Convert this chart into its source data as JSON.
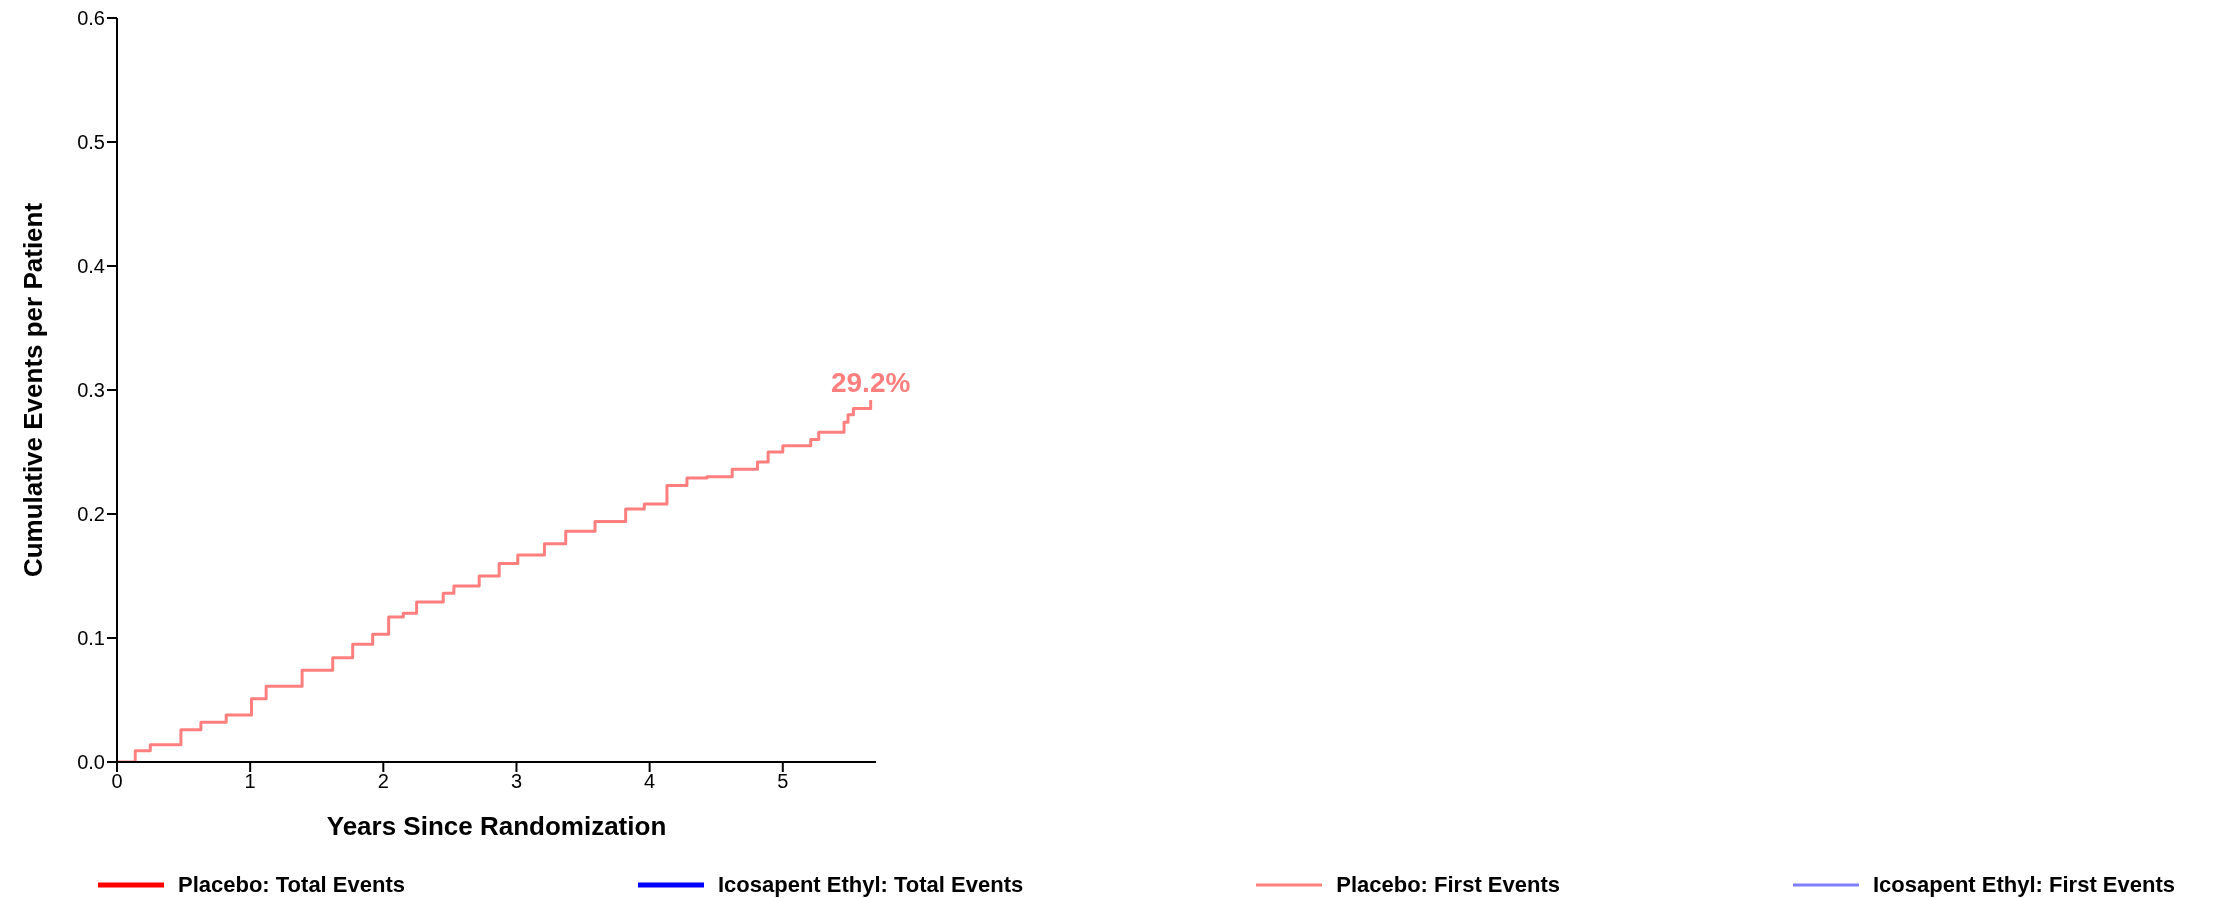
{
  "chart_data": {
    "type": "step",
    "xlabel": "Years Since Randomization",
    "ylabel": "Cumulative Events per Patient",
    "x": [
      0,
      0.137,
      0.25,
      0.33,
      0.48,
      0.63,
      0.82,
      1.01,
      1.12,
      1.39,
      1.62,
      1.77,
      1.92,
      2.04,
      2.15,
      2.25,
      2.45,
      2.53,
      2.72,
      2.87,
      3.01,
      3.21,
      3.37,
      3.59,
      3.82,
      3.96,
      4.13,
      4.28,
      4.43,
      4.62,
      4.81,
      4.89,
      5.0,
      5.21,
      5.27,
      5.46,
      5.49,
      5.53,
      5.66,
      5.66
    ],
    "series": [
      {
        "name": "Placebo: Total Events",
        "color": "#ff0000",
        "values": [
          null,
          null,
          null,
          null,
          null,
          null,
          null,
          null,
          null,
          null,
          null,
          null,
          null,
          null,
          null,
          null,
          null,
          null,
          null,
          null,
          null,
          null,
          null,
          null,
          null,
          null,
          null,
          null,
          null,
          null,
          null,
          null,
          null,
          null,
          null,
          null,
          null,
          null,
          null,
          null
        ]
      },
      {
        "name": "Icosapent Ethyl: Total Events",
        "color": "#0000ff",
        "values": [
          null,
          null,
          null,
          null,
          null,
          null,
          null,
          null,
          null,
          null,
          null,
          null,
          null,
          null,
          null,
          null,
          null,
          null,
          null,
          null,
          null,
          null,
          null,
          null,
          null,
          null,
          null,
          null,
          null,
          null,
          null,
          null,
          null,
          null,
          null,
          null,
          null,
          null,
          null,
          null
        ]
      },
      {
        "name": "Placebo: First Events",
        "color": "#ff7f7f",
        "values": [
          0,
          0.009,
          0.014,
          0.014,
          0.026,
          0.032,
          0.038,
          0.051,
          0.061,
          0.074,
          0.084,
          0.095,
          0.103,
          0.117,
          0.12,
          0.129,
          0.136,
          0.142,
          0.15,
          0.16,
          0.167,
          0.176,
          0.186,
          0.194,
          0.204,
          0.208,
          0.223,
          0.229,
          0.23,
          0.236,
          0.242,
          0.25,
          0.255,
          0.26,
          0.266,
          0.274,
          0.28,
          0.285,
          0.285,
          0.292
        ]
      },
      {
        "name": "Icosapent Ethyl: First Events",
        "color": "#7f7fff",
        "values": [
          null,
          null,
          null,
          null,
          null,
          null,
          null,
          null,
          null,
          null,
          null,
          null,
          null,
          null,
          null,
          null,
          null,
          null,
          null,
          null,
          null,
          null,
          null,
          null,
          null,
          null,
          null,
          null,
          null,
          null,
          null,
          null,
          null,
          null,
          null,
          null,
          null,
          null,
          null,
          null
        ]
      }
    ],
    "xlim": [
      0,
      5.7
    ],
    "xticks": [
      0,
      1,
      2,
      3,
      4,
      5
    ],
    "ylim": [
      0,
      0.6
    ],
    "yticks": [
      {
        "value": 0,
        "label": "0.0"
      },
      {
        "value": 0.1,
        "label": "0.1"
      },
      {
        "value": 0.2,
        "label": "0.2"
      },
      {
        "value": 0.3,
        "label": "0.3"
      },
      {
        "value": 0.4,
        "label": "0.4"
      },
      {
        "value": 0.5,
        "label": "0.5"
      },
      {
        "value": 0.6,
        "label": "0.6"
      }
    ],
    "annotations": [
      {
        "text": "29.2%",
        "x": 5.66,
        "y": 0.292
      }
    ],
    "legend": "bottom",
    "grid": false,
    "marker": "none",
    "line_style": "solid"
  }
}
